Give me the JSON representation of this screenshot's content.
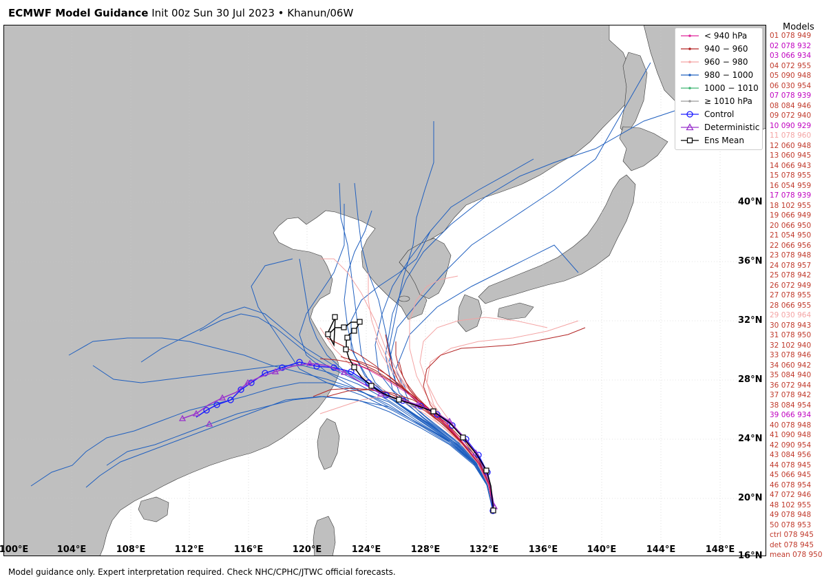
{
  "title": {
    "bold": "ECMWF Model Guidance",
    "rest": "Init 00z Sun 30 Jul 2023 • Khanun/06W"
  },
  "map": {
    "lat_labels": [
      "40°N",
      "36°N",
      "32°N",
      "28°N",
      "24°N",
      "20°N",
      "16°N"
    ],
    "lon_labels": [
      "100°E",
      "104°E",
      "108°E",
      "112°E",
      "116°E",
      "120°E",
      "124°E",
      "128°E",
      "132°E",
      "136°E",
      "140°E",
      "144°E",
      "148°E"
    ],
    "land_color": "#bfbfbf",
    "ocean_color": "#ffffff"
  },
  "legend": {
    "items": [
      {
        "label": "< 940 hPa",
        "color": "#e0249a",
        "marker": "dot"
      },
      {
        "label": "940 − 960",
        "color": "#b22222",
        "marker": "dot"
      },
      {
        "label": "960 − 980",
        "color": "#f4a3a3",
        "marker": "dot"
      },
      {
        "label": "980 − 1000",
        "color": "#1f5fbf",
        "marker": "dot"
      },
      {
        "label": "1000 − 1010",
        "color": "#3cb371",
        "marker": "dot"
      },
      {
        "label": "≥ 1010 hPa",
        "color": "#999999",
        "marker": "dot"
      },
      {
        "label": "Control",
        "color": "#1a1aff",
        "marker": "circle"
      },
      {
        "label": "Deterministic",
        "color": "#9932cc",
        "marker": "triangle"
      },
      {
        "label": "Ens Mean",
        "color": "#000000",
        "marker": "square"
      }
    ]
  },
  "models": {
    "title": "Models",
    "rows": [
      {
        "text": "01 078 949",
        "color": "#c0392b"
      },
      {
        "text": "02 078 932",
        "color": "#c000c0"
      },
      {
        "text": "03 066 934",
        "color": "#c000c0"
      },
      {
        "text": "04 072 955",
        "color": "#c0392b"
      },
      {
        "text": "05 090 948",
        "color": "#c0392b"
      },
      {
        "text": "06 030 954",
        "color": "#c0392b"
      },
      {
        "text": "07 078 939",
        "color": "#c000c0"
      },
      {
        "text": "08 084 946",
        "color": "#c0392b"
      },
      {
        "text": "09 072 940",
        "color": "#c0392b"
      },
      {
        "text": "10 090 929",
        "color": "#c000c0"
      },
      {
        "text": "11 078 960",
        "color": "#f4a3a3"
      },
      {
        "text": "12 060 948",
        "color": "#c0392b"
      },
      {
        "text": "13 060 945",
        "color": "#c0392b"
      },
      {
        "text": "14 066 943",
        "color": "#c0392b"
      },
      {
        "text": "15 078 955",
        "color": "#c0392b"
      },
      {
        "text": "16 054 959",
        "color": "#c0392b"
      },
      {
        "text": "17 078 939",
        "color": "#c000c0"
      },
      {
        "text": "18 102 955",
        "color": "#c0392b"
      },
      {
        "text": "19 066 949",
        "color": "#c0392b"
      },
      {
        "text": "20 066 950",
        "color": "#c0392b"
      },
      {
        "text": "21 054 950",
        "color": "#c0392b"
      },
      {
        "text": "22 066 956",
        "color": "#c0392b"
      },
      {
        "text": "23 078 948",
        "color": "#c0392b"
      },
      {
        "text": "24 078 957",
        "color": "#c0392b"
      },
      {
        "text": "25 078 942",
        "color": "#c0392b"
      },
      {
        "text": "26 072 949",
        "color": "#c0392b"
      },
      {
        "text": "27 078 955",
        "color": "#c0392b"
      },
      {
        "text": "28 066 955",
        "color": "#c0392b"
      },
      {
        "text": "29 030 964",
        "color": "#f4a3a3"
      },
      {
        "text": "30 078 943",
        "color": "#c0392b"
      },
      {
        "text": "31 078 950",
        "color": "#c0392b"
      },
      {
        "text": "32 102 940",
        "color": "#c0392b"
      },
      {
        "text": "33 078 946",
        "color": "#c0392b"
      },
      {
        "text": "34 060 942",
        "color": "#c0392b"
      },
      {
        "text": "35 084 940",
        "color": "#c0392b"
      },
      {
        "text": "36 072 944",
        "color": "#c0392b"
      },
      {
        "text": "37 078 942",
        "color": "#c0392b"
      },
      {
        "text": "38 084 954",
        "color": "#c0392b"
      },
      {
        "text": "39 066 934",
        "color": "#c000c0"
      },
      {
        "text": "40 078 948",
        "color": "#c0392b"
      },
      {
        "text": "41 090 948",
        "color": "#c0392b"
      },
      {
        "text": "42 090 954",
        "color": "#c0392b"
      },
      {
        "text": "43 084 956",
        "color": "#c0392b"
      },
      {
        "text": "44 078 945",
        "color": "#c0392b"
      },
      {
        "text": "45 066 945",
        "color": "#c0392b"
      },
      {
        "text": "46 078 954",
        "color": "#c0392b"
      },
      {
        "text": "47 072 946",
        "color": "#c0392b"
      },
      {
        "text": "48 102 955",
        "color": "#c0392b"
      },
      {
        "text": "49 078 948",
        "color": "#c0392b"
      },
      {
        "text": "50 078 953",
        "color": "#c0392b"
      },
      {
        "text": "ctrl 078 945",
        "color": "#c0392b"
      },
      {
        "text": "det 078 945",
        "color": "#c0392b"
      },
      {
        "text": "mean 078 950",
        "color": "#c0392b"
      }
    ]
  },
  "footer": "Model guidance only. Expert interpretation required. Check NHC/CPHC/JTWC official forecasts."
}
